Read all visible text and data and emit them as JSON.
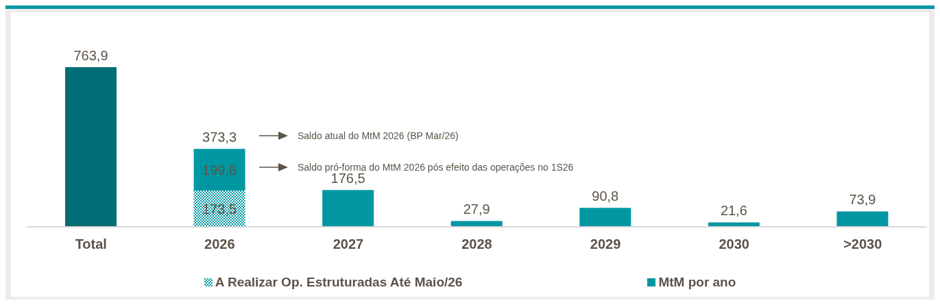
{
  "chart_data": {
    "type": "bar",
    "stacked": true,
    "categories": [
      "Total",
      "2026",
      "2027",
      "2028",
      "2029",
      "2030",
      ">2030"
    ],
    "series": [
      {
        "name": "A Realizar Op. Estruturadas Até Maio/26",
        "color": "#0097a3",
        "values": [
          null,
          173.5,
          null,
          null,
          null,
          null,
          null
        ],
        "value_labels": [
          null,
          "173,5",
          null,
          null,
          null,
          null,
          null
        ]
      },
      {
        "name": "MtM por ano",
        "color": "#0097a3",
        "colors": [
          "#006e74",
          "#0097a3",
          "#0097a3",
          "#0097a3",
          "#0097a3",
          "#0097a3",
          "#0097a3"
        ],
        "values": [
          763.9,
          199.8,
          176.5,
          27.9,
          90.8,
          21.6,
          73.9
        ],
        "value_labels": [
          "763,9",
          "199,8",
          "176,5",
          "27,9",
          "90,8",
          "21,6",
          "73,9"
        ]
      }
    ],
    "totals": [
      null,
      "373,3",
      null,
      null,
      null,
      null,
      null
    ],
    "annotations": [
      "Saldo atual do MtM 2026 (BP Mar/26)",
      "Saldo pró-forma do MtM 2026 pós efeito das operações no 1S26"
    ],
    "legend": "bottom"
  }
}
